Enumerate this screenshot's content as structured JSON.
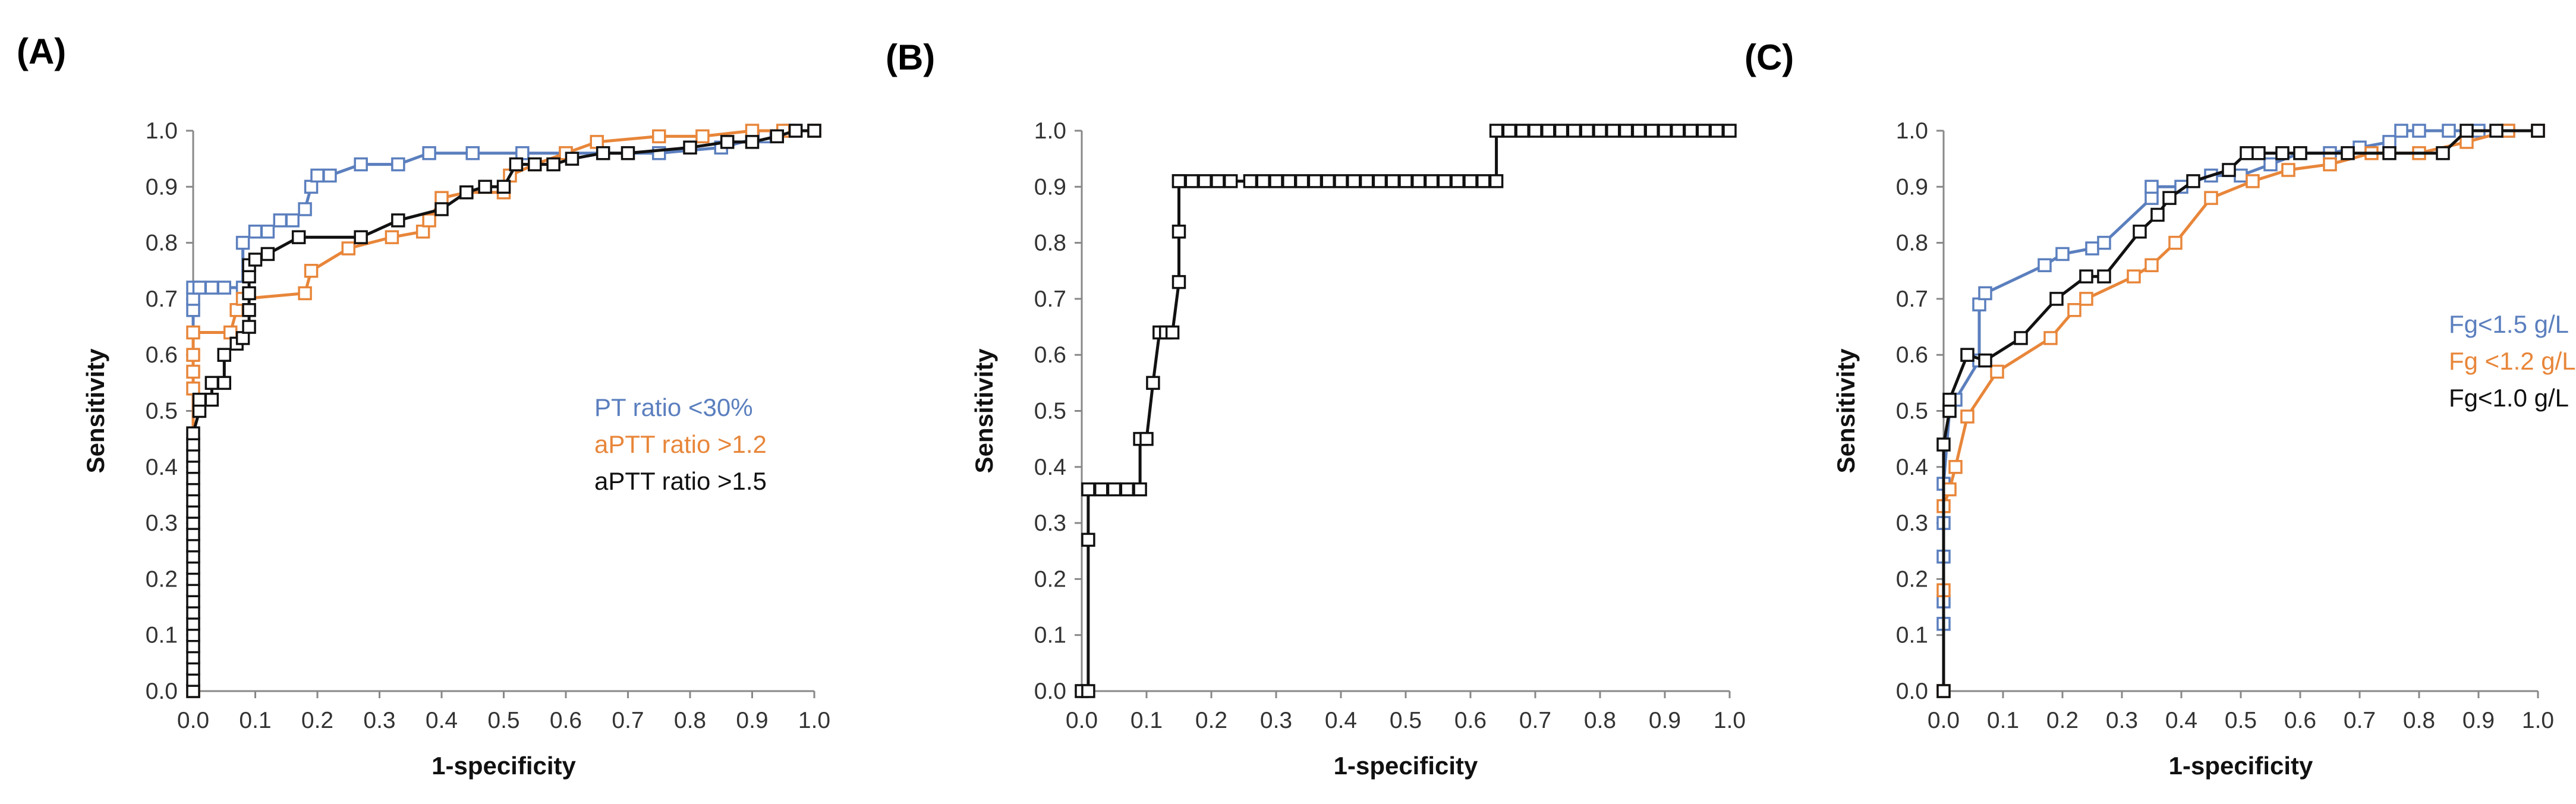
{
  "panels": [
    {
      "label": "(A)"
    },
    {
      "label": "(B)"
    },
    {
      "label": "(C)"
    }
  ],
  "chart_data": [
    {
      "type": "line",
      "panel": "(A)",
      "xlabel": "1-specificity",
      "ylabel": "Sensitivity",
      "xlim": [
        0,
        1
      ],
      "ylim": [
        0,
        1
      ],
      "xticks": [
        "0.0",
        "0.1",
        "0.2",
        "0.3",
        "0.4",
        "0.5",
        "0.6",
        "0.7",
        "0.8",
        "0.9",
        "1.0"
      ],
      "yticks": [
        "0.0",
        "0.1",
        "0.2",
        "0.3",
        "0.4",
        "0.5",
        "0.6",
        "0.7",
        "0.8",
        "0.9",
        "1.0"
      ],
      "grid": false,
      "legend_position": "right",
      "series": [
        {
          "name": "PT ratio <30%",
          "color": "#5b7fbe",
          "x": [
            0,
            0,
            0,
            0,
            0.01,
            0.03,
            0.05,
            0.08,
            0.08,
            0.1,
            0.12,
            0.14,
            0.16,
            0.18,
            0.19,
            0.2,
            0.22,
            0.27,
            0.33,
            0.38,
            0.45,
            0.53,
            0.6,
            0.66,
            0.75,
            0.85,
            0.92,
            0.96,
            1
          ],
          "y": [
            0,
            0.68,
            0.7,
            0.72,
            0.72,
            0.72,
            0.72,
            0.72,
            0.8,
            0.82,
            0.82,
            0.84,
            0.84,
            0.86,
            0.9,
            0.92,
            0.92,
            0.94,
            0.94,
            0.96,
            0.96,
            0.96,
            0.96,
            0.96,
            0.96,
            0.97,
            0.99,
            1,
            1
          ]
        },
        {
          "name": "aPTT ratio >1.2",
          "color": "#e8863a",
          "x": [
            0,
            0,
            0,
            0,
            0,
            0.06,
            0.07,
            0.08,
            0.18,
            0.19,
            0.25,
            0.32,
            0.37,
            0.38,
            0.4,
            0.44,
            0.5,
            0.51,
            0.55,
            0.6,
            0.65,
            0.75,
            0.82,
            0.9,
            0.95,
            1
          ],
          "y": [
            0,
            0.54,
            0.57,
            0.6,
            0.64,
            0.64,
            0.68,
            0.7,
            0.71,
            0.75,
            0.79,
            0.81,
            0.82,
            0.84,
            0.88,
            0.89,
            0.89,
            0.92,
            0.94,
            0.96,
            0.98,
            0.99,
            0.99,
            1,
            1,
            1
          ],
          "markers": true
        },
        {
          "name": "aPTT ratio >1.5",
          "color": "#111111",
          "x": [
            0,
            0,
            0,
            0,
            0,
            0,
            0,
            0,
            0,
            0,
            0,
            0,
            0,
            0,
            0,
            0,
            0,
            0,
            0,
            0,
            0,
            0,
            0,
            0,
            0.01,
            0.01,
            0.03,
            0.03,
            0.05,
            0.05,
            0.07,
            0.08,
            0.09,
            0.09,
            0.09,
            0.09,
            0.09,
            0.1,
            0.12,
            0.17,
            0.27,
            0.33,
            0.4,
            0.44,
            0.47,
            0.5,
            0.52,
            0.55,
            0.58,
            0.61,
            0.66,
            0.7,
            0.8,
            0.86,
            0.9,
            0.94,
            0.97,
            1
          ],
          "y": [
            0,
            0.02,
            0.04,
            0.06,
            0.08,
            0.1,
            0.12,
            0.14,
            0.16,
            0.18,
            0.2,
            0.22,
            0.24,
            0.26,
            0.28,
            0.3,
            0.32,
            0.34,
            0.36,
            0.38,
            0.4,
            0.42,
            0.44,
            0.46,
            0.5,
            0.52,
            0.52,
            0.55,
            0.55,
            0.6,
            0.62,
            0.63,
            0.65,
            0.68,
            0.71,
            0.74,
            0.76,
            0.77,
            0.78,
            0.81,
            0.81,
            0.84,
            0.86,
            0.89,
            0.9,
            0.9,
            0.94,
            0.94,
            0.94,
            0.95,
            0.96,
            0.96,
            0.97,
            0.98,
            0.98,
            0.99,
            1,
            1
          ],
          "markers": true
        }
      ]
    },
    {
      "type": "line",
      "panel": "(B)",
      "xlabel": "1-specificity",
      "ylabel": "Sensitivity",
      "xlim": [
        0,
        1
      ],
      "ylim": [
        0,
        1
      ],
      "xticks": [
        "0.0",
        "0.1",
        "0.2",
        "0.3",
        "0.4",
        "0.5",
        "0.6",
        "0.7",
        "0.8",
        "0.9",
        "1.0"
      ],
      "yticks": [
        "0.0",
        "0.1",
        "0.2",
        "0.3",
        "0.4",
        "0.5",
        "0.6",
        "0.7",
        "0.8",
        "0.9",
        "1.0"
      ],
      "grid": false,
      "series": [
        {
          "color": "#111111",
          "x": [
            0,
            0.01,
            0.01,
            0.01,
            0.03,
            0.05,
            0.07,
            0.09,
            0.09,
            0.1,
            0.11,
            0.12,
            0.13,
            0.14,
            0.15,
            0.15,
            0.15,
            0.15,
            0.17,
            0.19,
            0.21,
            0.23,
            0.26,
            0.28,
            0.3,
            0.32,
            0.34,
            0.36,
            0.38,
            0.4,
            0.42,
            0.44,
            0.46,
            0.48,
            0.5,
            0.52,
            0.54,
            0.56,
            0.58,
            0.6,
            0.62,
            0.64,
            0.64,
            0.66,
            0.68,
            0.7,
            0.72,
            0.74,
            0.76,
            0.78,
            0.8,
            0.82,
            0.84,
            0.86,
            0.88,
            0.9,
            0.92,
            0.94,
            0.96,
            0.98,
            1
          ],
          "y": [
            0,
            0,
            0.27,
            0.36,
            0.36,
            0.36,
            0.36,
            0.36,
            0.45,
            0.45,
            0.55,
            0.64,
            0.64,
            0.64,
            0.73,
            0.82,
            0.91,
            0.91,
            0.91,
            0.91,
            0.91,
            0.91,
            0.91,
            0.91,
            0.91,
            0.91,
            0.91,
            0.91,
            0.91,
            0.91,
            0.91,
            0.91,
            0.91,
            0.91,
            0.91,
            0.91,
            0.91,
            0.91,
            0.91,
            0.91,
            0.91,
            0.91,
            1,
            1,
            1,
            1,
            1,
            1,
            1,
            1,
            1,
            1,
            1,
            1,
            1,
            1,
            1,
            1,
            1,
            1,
            1
          ],
          "markers": true
        }
      ]
    },
    {
      "type": "line",
      "panel": "(C)",
      "xlabel": "1-specificity",
      "ylabel": "Sensitivity",
      "xlim": [
        0,
        1
      ],
      "ylim": [
        0,
        1
      ],
      "xticks": [
        "0.0",
        "0.1",
        "0.2",
        "0.3",
        "0.4",
        "0.5",
        "0.6",
        "0.7",
        "0.8",
        "0.9",
        "1.0"
      ],
      "yticks": [
        "0.0",
        "0.1",
        "0.2",
        "0.3",
        "0.4",
        "0.5",
        "0.6",
        "0.7",
        "0.8",
        "0.9",
        "1.0"
      ],
      "grid": false,
      "legend_position": "right",
      "series": [
        {
          "name": "Fg<1.5 g/L",
          "color": "#5b7fbe",
          "x": [
            0,
            0,
            0,
            0,
            0,
            0,
            0.01,
            0.02,
            0.06,
            0.06,
            0.07,
            0.17,
            0.2,
            0.25,
            0.27,
            0.35,
            0.35,
            0.4,
            0.45,
            0.5,
            0.55,
            0.6,
            0.65,
            0.7,
            0.75,
            0.77,
            0.8,
            0.85,
            0.9,
            0.95,
            1
          ],
          "y": [
            0,
            0.12,
            0.16,
            0.24,
            0.3,
            0.37,
            0.5,
            0.52,
            0.59,
            0.69,
            0.71,
            0.76,
            0.78,
            0.79,
            0.8,
            0.88,
            0.9,
            0.9,
            0.92,
            0.92,
            0.94,
            0.96,
            0.96,
            0.97,
            0.98,
            1,
            1,
            1,
            1,
            1,
            1
          ]
        },
        {
          "name": "Fg <1.2 g/L",
          "color": "#e8863a",
          "x": [
            0,
            0,
            0,
            0.01,
            0.02,
            0.04,
            0.09,
            0.18,
            0.22,
            0.24,
            0.32,
            0.35,
            0.39,
            0.45,
            0.52,
            0.58,
            0.65,
            0.72,
            0.8,
            0.88,
            0.95,
            1
          ],
          "y": [
            0,
            0.18,
            0.33,
            0.36,
            0.4,
            0.49,
            0.57,
            0.63,
            0.68,
            0.7,
            0.74,
            0.76,
            0.8,
            0.88,
            0.91,
            0.93,
            0.94,
            0.96,
            0.96,
            0.98,
            1,
            1
          ],
          "markers": true
        },
        {
          "name": "Fg<1.0 g/L",
          "color": "#111111",
          "x": [
            0,
            0,
            0.01,
            0.01,
            0.04,
            0.07,
            0.13,
            0.19,
            0.24,
            0.27,
            0.33,
            0.36,
            0.38,
            0.42,
            0.48,
            0.51,
            0.53,
            0.57,
            0.6,
            0.68,
            0.75,
            0.84,
            0.88,
            0.93,
            1
          ],
          "y": [
            0,
            0.44,
            0.5,
            0.52,
            0.6,
            0.59,
            0.63,
            0.7,
            0.74,
            0.74,
            0.82,
            0.85,
            0.88,
            0.91,
            0.93,
            0.96,
            0.96,
            0.96,
            0.96,
            0.96,
            0.96,
            0.96,
            1,
            1,
            1
          ],
          "markers": true
        }
      ]
    }
  ]
}
